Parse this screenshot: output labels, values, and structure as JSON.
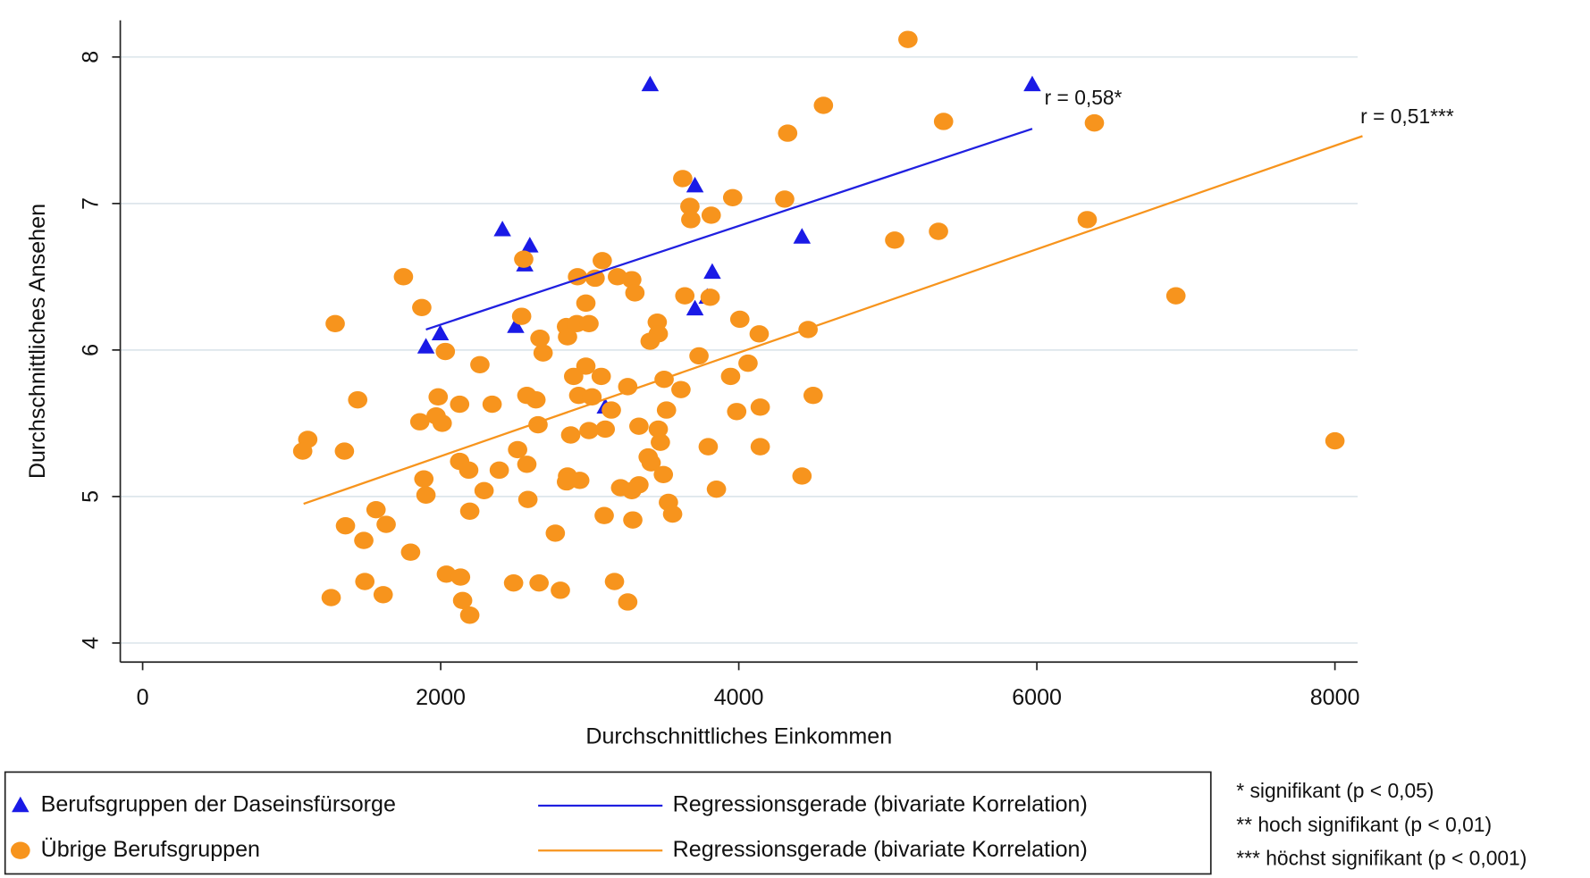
{
  "chart_data": {
    "type": "scatter",
    "xlabel": "Durchschnittliches Einkommen",
    "ylabel": "Durchschnittliches Ansehen",
    "xlim": [
      -150,
      8200
    ],
    "ylim": [
      3.87,
      8.25
    ],
    "xticks": [
      0,
      2000,
      4000,
      6000,
      8000
    ],
    "yticks": [
      4,
      5,
      6,
      7,
      8
    ],
    "grid": true,
    "series": [
      {
        "name": "Berufsgruppen der Daseinsfürsorge",
        "kind": "scatter",
        "marker": "triangle",
        "color": "#1a1ae6",
        "x": [
          3405,
          5969,
          3706,
          2414,
          4424,
          2598,
          2564,
          3822,
          3788,
          3706,
          2503,
          1997,
          1901,
          3104
        ],
        "values": [
          7.81,
          7.81,
          7.12,
          6.82,
          6.77,
          6.71,
          6.58,
          6.53,
          6.36,
          6.28,
          6.16,
          6.11,
          6.02,
          5.61
        ]
      },
      {
        "name": "Übrige Berufsgruppen",
        "kind": "scatter",
        "marker": "circle",
        "color": "#f7941d",
        "x": [
          5135,
          4568,
          6386,
          5374,
          4328,
          3624,
          3959,
          4308,
          3672,
          3815,
          3678,
          6338,
          5340,
          5046,
          2557,
          3084,
          1750,
          2918,
          3186,
          3036,
          3282,
          3303,
          1873,
          3638,
          3808,
          6933,
          2974,
          2543,
          1292,
          4007,
          3453,
          2844,
          2913,
          2995,
          4137,
          3460,
          4465,
          2666,
          2851,
          3405,
          2031,
          2687,
          3733,
          2263,
          2974,
          4062,
          3077,
          2892,
          3945,
          3499,
          3612,
          3255,
          2578,
          2926,
          3015,
          1983,
          4499,
          1443,
          2639,
          2345,
          2127,
          4144,
          3515,
          3986,
          3145,
          1969,
          1860,
          2010,
          2653,
          3330,
          3460,
          3104,
          2995,
          2872,
          3474,
          1108,
          1074,
          1354,
          3795,
          4144,
          3392,
          2516,
          3412,
          2127,
          2578,
          2393,
          2188,
          3494,
          4424,
          2851,
          1887,
          2933,
          2844,
          3330,
          3207,
          3282,
          3850,
          2291,
          1901,
          2585,
          3528,
          1566,
          2195,
          3556,
          3097,
          3289,
          1361,
          1634,
          2769,
          1484,
          1798,
          2038,
          2133,
          1491,
          2489,
          2660,
          3166,
          1614,
          1265,
          2803,
          2147,
          3255,
          2195,
          8000
        ],
        "values": [
          8.12,
          7.67,
          7.55,
          7.56,
          7.48,
          7.17,
          7.04,
          7.03,
          6.98,
          6.92,
          6.89,
          6.89,
          6.81,
          6.75,
          6.62,
          6.61,
          6.5,
          6.5,
          6.5,
          6.49,
          6.48,
          6.39,
          6.29,
          6.37,
          6.36,
          6.37,
          6.32,
          6.23,
          6.18,
          6.21,
          6.19,
          6.16,
          6.18,
          6.18,
          6.11,
          6.11,
          6.14,
          6.08,
          6.09,
          6.06,
          5.99,
          5.98,
          5.96,
          5.9,
          5.89,
          5.91,
          5.82,
          5.82,
          5.82,
          5.8,
          5.73,
          5.75,
          5.69,
          5.69,
          5.68,
          5.68,
          5.69,
          5.66,
          5.66,
          5.63,
          5.63,
          5.61,
          5.59,
          5.58,
          5.59,
          5.55,
          5.51,
          5.5,
          5.49,
          5.48,
          5.46,
          5.46,
          5.45,
          5.42,
          5.37,
          5.39,
          5.31,
          5.31,
          5.34,
          5.34,
          5.27,
          5.32,
          5.23,
          5.24,
          5.22,
          5.18,
          5.18,
          5.15,
          5.14,
          5.14,
          5.12,
          5.11,
          5.1,
          5.08,
          5.06,
          5.04,
          5.05,
          5.04,
          5.01,
          4.98,
          4.96,
          4.91,
          4.9,
          4.88,
          4.87,
          4.84,
          4.8,
          4.81,
          4.75,
          4.7,
          4.62,
          4.47,
          4.45,
          4.42,
          4.41,
          4.41,
          4.42,
          4.33,
          4.31,
          4.36,
          4.29,
          4.28,
          4.19,
          5.38
        ]
      },
      {
        "name": "Regressionsgerade (bivariate Korrelation)",
        "kind": "line",
        "color": "#2020e0",
        "label": "r = 0,58*",
        "x": [
          1901,
          5969
        ],
        "values": [
          6.14,
          7.51
        ]
      },
      {
        "name": "Regressionsgerade (bivariate Korrelation)",
        "kind": "line",
        "color": "#f7941d",
        "label": "r = 0,51***",
        "x": [
          1080,
          8185
        ],
        "values": [
          4.95,
          7.46
        ]
      }
    ],
    "footnotes": [
      "* signifikant (p < 0,05)",
      "** hoch signifikant (p < 0,01)",
      "*** höchst signifikant (p < 0,001)"
    ]
  }
}
